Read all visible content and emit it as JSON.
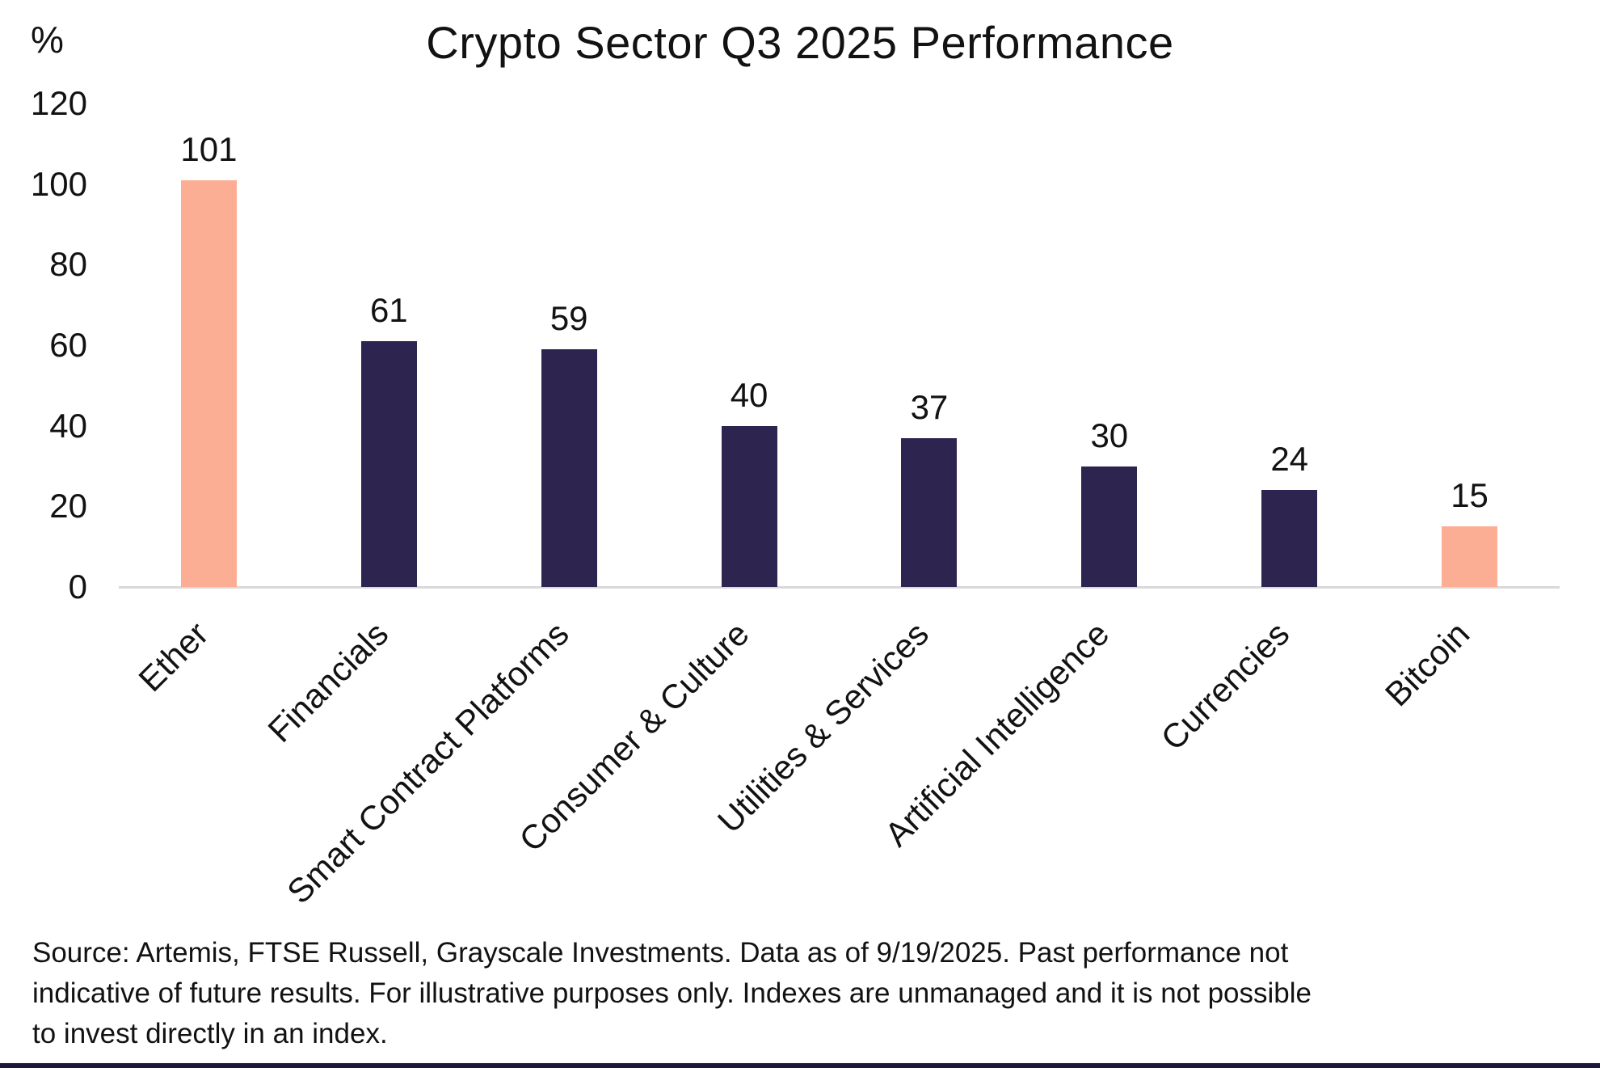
{
  "chart_data": {
    "type": "bar",
    "title": "Crypto Sector Q3 2025 Performance",
    "ylabel": "%",
    "xlabel": "",
    "ylim": [
      0,
      120
    ],
    "yticks": [
      120,
      100,
      80,
      60,
      40,
      20,
      0
    ],
    "grid": false,
    "legend": "none",
    "categories": [
      "Ether",
      "Financials",
      "Smart Contract Platforms",
      "Consumer & Culture",
      "Utilities & Services",
      "Artificial Intelligence",
      "Currencies",
      "Bitcoin"
    ],
    "values": [
      101,
      61,
      59,
      40,
      37,
      30,
      24,
      15
    ],
    "bar_colors": [
      "#FBAE93",
      "#2E2450",
      "#2E2450",
      "#2E2450",
      "#2E2450",
      "#2E2450",
      "#2E2450",
      "#FBAE93"
    ]
  },
  "colors": {
    "accent_peach": "#FBAE93",
    "accent_navy": "#2E2450",
    "axis_line": "#D9D9D9",
    "footer_bar": "#1D1836",
    "text": "#121212"
  },
  "footer": {
    "source_lines": [
      "Source: Artemis, FTSE Russell, Grayscale Investments. Data as of 9/19/2025. Past performance not",
      "indicative of future results. For illustrative purposes only. Indexes are unmanaged and it is not possible",
      "to invest directly in an index."
    ]
  }
}
